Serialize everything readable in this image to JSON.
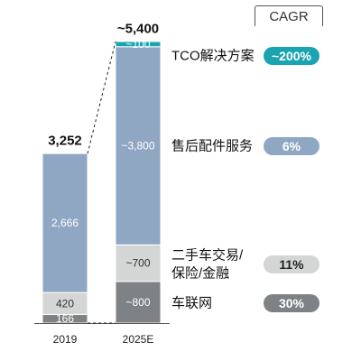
{
  "chart_data": {
    "type": "bar",
    "stacked": true,
    "categories": [
      "2019",
      "2025E"
    ],
    "totals": [
      "3,252",
      "~5,400"
    ],
    "series": [
      {
        "name": "车联网",
        "values": [
          166,
          800
        ],
        "value_labels": [
          "166",
          "~800"
        ],
        "color": "#7f8284",
        "cagr": "30%"
      },
      {
        "name": "二手车交易/保险/金融",
        "name_lines": [
          "二手车交易/",
          "保险/金融"
        ],
        "values": [
          420,
          700
        ],
        "value_labels": [
          "420",
          "~700"
        ],
        "color": "#d4d5d5",
        "cagr": "11%"
      },
      {
        "name": "售后配件服务",
        "values": [
          2666,
          3800
        ],
        "value_labels": [
          "2,666",
          "~3,800"
        ],
        "color": "#8fa7c2",
        "cagr": "6%"
      },
      {
        "name": "TCO解决方案",
        "values": [
          0,
          100
        ],
        "value_labels": [
          "",
          "~100"
        ],
        "color": "#1aa4b0",
        "cagr": "~200%"
      }
    ],
    "cagr_title": "CAGR",
    "ylim": [
      0,
      5400
    ],
    "grid": false
  }
}
